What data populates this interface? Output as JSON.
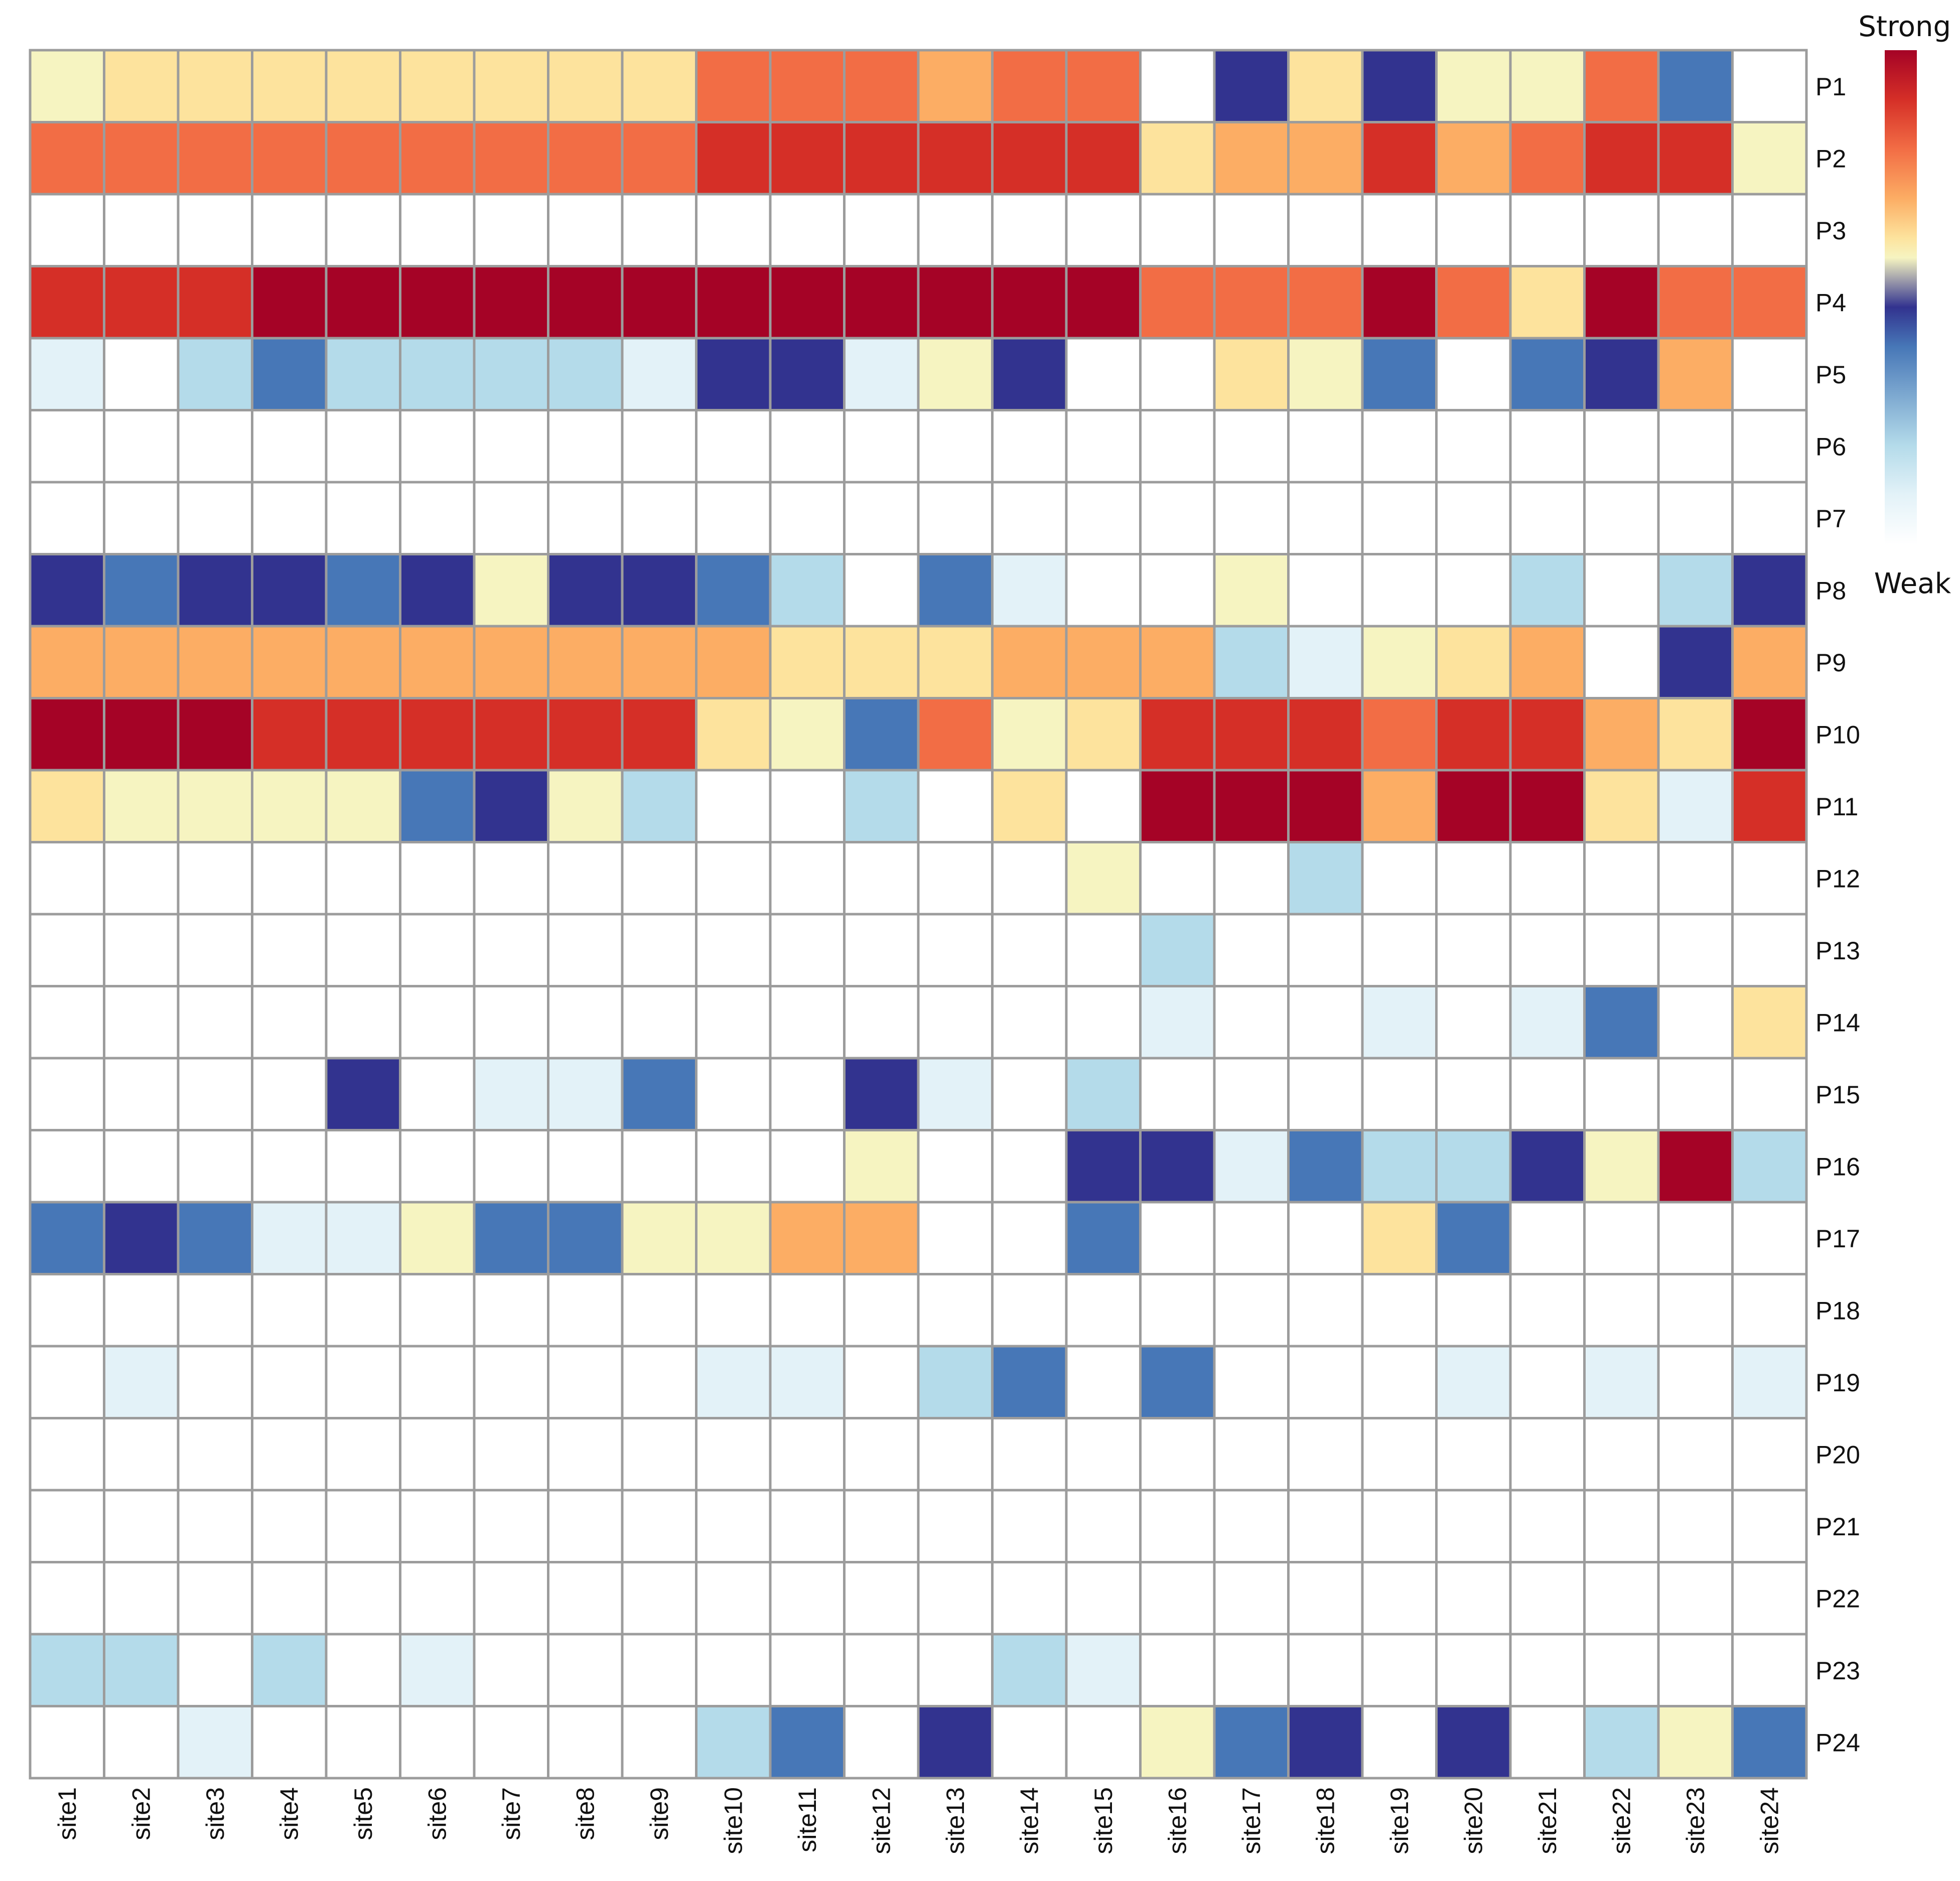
{
  "chart_data": {
    "type": "heatmap",
    "rows": [
      "P1",
      "P2",
      "P3",
      "P4",
      "P5",
      "P6",
      "P7",
      "P8",
      "P9",
      "P10",
      "P11",
      "P12",
      "P13",
      "P14",
      "P15",
      "P16",
      "P17",
      "P18",
      "P19",
      "P20",
      "P21",
      "P22",
      "P23",
      "P24"
    ],
    "columns": [
      "site1",
      "site2",
      "site3",
      "site4",
      "site5",
      "site6",
      "site7",
      "site8",
      "site9",
      "site10",
      "site11",
      "site12",
      "site13",
      "site14",
      "site15",
      "site16",
      "site17",
      "site18",
      "site19",
      "site20",
      "site21",
      "site22",
      "site23",
      "site24"
    ],
    "value_scale": "0 = weak (white) ... 1 = strong (dark red); the colour scale runs white, light blue, blue, navy, then yellow, orange, red, dark red",
    "values": [
      [
        0.58,
        0.62,
        0.62,
        0.62,
        0.62,
        0.62,
        0.62,
        0.62,
        0.62,
        0.8,
        0.8,
        0.8,
        0.7,
        0.8,
        0.8,
        0.0,
        0.48,
        0.62,
        0.48,
        0.58,
        0.58,
        0.8,
        0.4,
        0.0
      ],
      [
        0.8,
        0.8,
        0.8,
        0.8,
        0.8,
        0.8,
        0.8,
        0.8,
        0.8,
        0.9,
        0.9,
        0.9,
        0.9,
        0.9,
        0.9,
        0.62,
        0.7,
        0.7,
        0.9,
        0.7,
        0.8,
        0.9,
        0.9,
        0.58
      ],
      [
        0.0,
        0.0,
        0.0,
        0.0,
        0.0,
        0.0,
        0.0,
        0.0,
        0.0,
        0.0,
        0.0,
        0.0,
        0.0,
        0.0,
        0.0,
        0.0,
        0.0,
        0.0,
        0.0,
        0.0,
        0.0,
        0.0,
        0.0,
        0.0
      ],
      [
        0.9,
        0.9,
        0.9,
        1.0,
        1.0,
        1.0,
        1.0,
        1.0,
        1.0,
        1.0,
        1.0,
        1.0,
        1.0,
        1.0,
        1.0,
        0.8,
        0.8,
        0.8,
        1.0,
        0.8,
        0.62,
        1.0,
        0.8,
        0.8
      ],
      [
        0.1,
        0.0,
        0.2,
        0.4,
        0.2,
        0.2,
        0.2,
        0.2,
        0.1,
        0.48,
        0.48,
        0.1,
        0.58,
        0.48,
        0.0,
        0.0,
        0.62,
        0.58,
        0.4,
        0.0,
        0.4,
        0.48,
        0.7,
        0.0
      ],
      [
        0.0,
        0.0,
        0.0,
        0.0,
        0.0,
        0.0,
        0.0,
        0.0,
        0.0,
        0.0,
        0.0,
        0.0,
        0.0,
        0.0,
        0.0,
        0.0,
        0.0,
        0.0,
        0.0,
        0.0,
        0.0,
        0.0,
        0.0,
        0.0
      ],
      [
        0.0,
        0.0,
        0.0,
        0.0,
        0.0,
        0.0,
        0.0,
        0.0,
        0.0,
        0.0,
        0.0,
        0.0,
        0.0,
        0.0,
        0.0,
        0.0,
        0.0,
        0.0,
        0.0,
        0.0,
        0.0,
        0.0,
        0.0,
        0.0
      ],
      [
        0.48,
        0.4,
        0.48,
        0.48,
        0.4,
        0.48,
        0.58,
        0.48,
        0.48,
        0.4,
        0.2,
        0.0,
        0.4,
        0.1,
        0.0,
        0.0,
        0.58,
        0.0,
        0.0,
        0.0,
        0.2,
        0.0,
        0.2,
        0.48
      ],
      [
        0.7,
        0.7,
        0.7,
        0.7,
        0.7,
        0.7,
        0.7,
        0.7,
        0.7,
        0.7,
        0.62,
        0.62,
        0.62,
        0.7,
        0.7,
        0.7,
        0.2,
        0.1,
        0.58,
        0.62,
        0.7,
        0.0,
        0.48,
        0.7
      ],
      [
        1.0,
        1.0,
        1.0,
        0.9,
        0.9,
        0.9,
        0.9,
        0.9,
        0.9,
        0.62,
        0.58,
        0.4,
        0.8,
        0.58,
        0.62,
        0.9,
        0.9,
        0.9,
        0.8,
        0.9,
        0.9,
        0.7,
        0.62,
        1.0
      ],
      [
        0.62,
        0.58,
        0.58,
        0.58,
        0.58,
        0.4,
        0.48,
        0.58,
        0.2,
        0.0,
        0.0,
        0.2,
        0.0,
        0.62,
        0.0,
        1.0,
        1.0,
        1.0,
        0.7,
        1.0,
        1.0,
        0.62,
        0.1,
        0.9
      ],
      [
        0.0,
        0.0,
        0.0,
        0.0,
        0.0,
        0.0,
        0.0,
        0.0,
        0.0,
        0.0,
        0.0,
        0.0,
        0.0,
        0.0,
        0.58,
        0.0,
        0.0,
        0.2,
        0.0,
        0.0,
        0.0,
        0.0,
        0.0,
        0.0
      ],
      [
        0.0,
        0.0,
        0.0,
        0.0,
        0.0,
        0.0,
        0.0,
        0.0,
        0.0,
        0.0,
        0.0,
        0.0,
        0.0,
        0.0,
        0.0,
        0.2,
        0.0,
        0.0,
        0.0,
        0.0,
        0.0,
        0.0,
        0.0,
        0.0
      ],
      [
        0.0,
        0.0,
        0.0,
        0.0,
        0.0,
        0.0,
        0.0,
        0.0,
        0.0,
        0.0,
        0.0,
        0.0,
        0.0,
        0.0,
        0.0,
        0.1,
        0.0,
        0.0,
        0.1,
        0.0,
        0.1,
        0.4,
        0.0,
        0.62
      ],
      [
        0.0,
        0.0,
        0.0,
        0.0,
        0.48,
        0.0,
        0.1,
        0.1,
        0.4,
        0.0,
        0.0,
        0.48,
        0.1,
        0.0,
        0.2,
        0.0,
        0.0,
        0.0,
        0.0,
        0.0,
        0.0,
        0.0,
        0.0,
        0.0
      ],
      [
        0.0,
        0.0,
        0.0,
        0.0,
        0.0,
        0.0,
        0.0,
        0.0,
        0.0,
        0.0,
        0.0,
        0.58,
        0.0,
        0.0,
        0.48,
        0.48,
        0.1,
        0.4,
        0.2,
        0.2,
        0.48,
        0.58,
        1.0,
        0.2
      ],
      [
        0.4,
        0.48,
        0.4,
        0.1,
        0.1,
        0.58,
        0.4,
        0.4,
        0.58,
        0.58,
        0.7,
        0.7,
        0.0,
        0.0,
        0.4,
        0.0,
        0.0,
        0.0,
        0.62,
        0.4,
        0.0,
        0.0,
        0.0,
        0.0
      ],
      [
        0.0,
        0.0,
        0.0,
        0.0,
        0.0,
        0.0,
        0.0,
        0.0,
        0.0,
        0.0,
        0.0,
        0.0,
        0.0,
        0.0,
        0.0,
        0.0,
        0.0,
        0.0,
        0.0,
        0.0,
        0.0,
        0.0,
        0.0,
        0.0
      ],
      [
        0.0,
        0.1,
        0.0,
        0.0,
        0.0,
        0.0,
        0.0,
        0.0,
        0.0,
        0.1,
        0.1,
        0.0,
        0.2,
        0.4,
        0.0,
        0.4,
        0.0,
        0.0,
        0.0,
        0.1,
        0.0,
        0.1,
        0.0,
        0.1
      ],
      [
        0.0,
        0.0,
        0.0,
        0.0,
        0.0,
        0.0,
        0.0,
        0.0,
        0.0,
        0.0,
        0.0,
        0.0,
        0.0,
        0.0,
        0.0,
        0.0,
        0.0,
        0.0,
        0.0,
        0.0,
        0.0,
        0.0,
        0.0,
        0.0
      ],
      [
        0.0,
        0.0,
        0.0,
        0.0,
        0.0,
        0.0,
        0.0,
        0.0,
        0.0,
        0.0,
        0.0,
        0.0,
        0.0,
        0.0,
        0.0,
        0.0,
        0.0,
        0.0,
        0.0,
        0.0,
        0.0,
        0.0,
        0.0,
        0.0
      ],
      [
        0.0,
        0.0,
        0.0,
        0.0,
        0.0,
        0.0,
        0.0,
        0.0,
        0.0,
        0.0,
        0.0,
        0.0,
        0.0,
        0.0,
        0.0,
        0.0,
        0.0,
        0.0,
        0.0,
        0.0,
        0.0,
        0.0,
        0.0,
        0.0
      ],
      [
        0.2,
        0.2,
        0.0,
        0.2,
        0.0,
        0.1,
        0.0,
        0.0,
        0.0,
        0.0,
        0.0,
        0.0,
        0.0,
        0.2,
        0.1,
        0.0,
        0.0,
        0.0,
        0.0,
        0.0,
        0.0,
        0.0,
        0.0,
        0.0
      ],
      [
        0.0,
        0.0,
        0.1,
        0.0,
        0.0,
        0.0,
        0.0,
        0.0,
        0.0,
        0.2,
        0.4,
        0.0,
        0.48,
        0.0,
        0.0,
        0.58,
        0.4,
        0.48,
        0.0,
        0.48,
        0.0,
        0.2,
        0.58,
        0.4
      ]
    ],
    "legend": {
      "high_label": "Strong",
      "low_label": "Weak",
      "placement": "top-right"
    },
    "color_stops": [
      {
        "value": 0.0,
        "color": "#ffffff"
      },
      {
        "value": 0.1,
        "color": "#e3f2f8"
      },
      {
        "value": 0.2,
        "color": "#b4dbea"
      },
      {
        "value": 0.4,
        "color": "#4777b7"
      },
      {
        "value": 0.48,
        "color": "#32338f"
      },
      {
        "value": 0.58,
        "color": "#f6f4c1"
      },
      {
        "value": 0.62,
        "color": "#fde39d"
      },
      {
        "value": 0.7,
        "color": "#fcad64"
      },
      {
        "value": 0.8,
        "color": "#f26d45"
      },
      {
        "value": 0.9,
        "color": "#d52f27"
      },
      {
        "value": 1.0,
        "color": "#a50326"
      }
    ],
    "gridline_color": "#9c9c9c"
  }
}
